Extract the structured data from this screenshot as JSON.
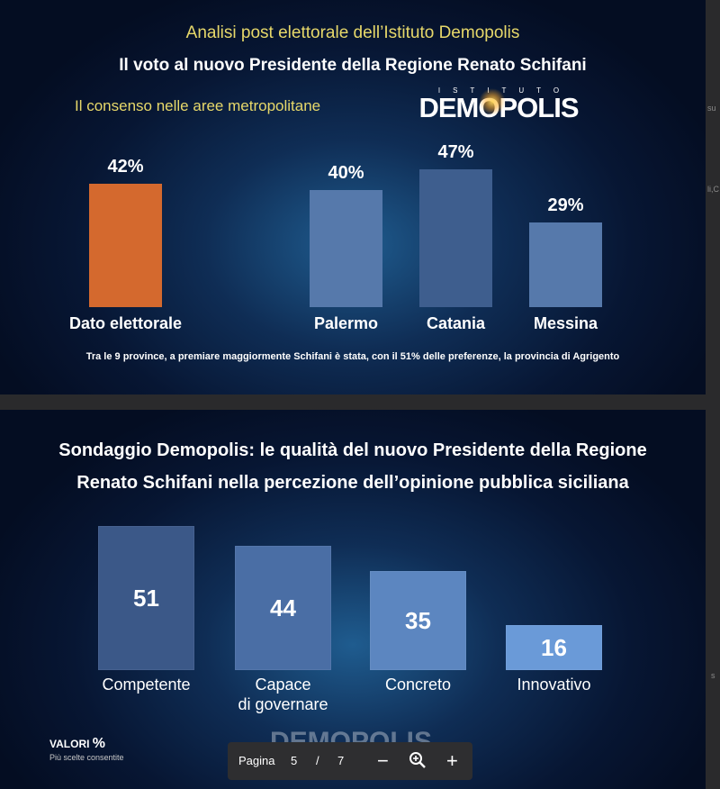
{
  "edge": {
    "right_fragment_1": "su",
    "right_fragment_2": "li,C",
    "right_fragment_3": "s"
  },
  "slide1": {
    "kicker": "Analisi post elettorale dell’Istituto Demopolis",
    "title": "Il voto al nuovo Presidente della Regione Renato Schifani",
    "subtitle": "Il consenso nelle aree metropolitane",
    "logo_small": "ISTITUTO",
    "logo_big": "DEMOPOLIS",
    "note": "Tra le 9 province, a premiare maggiormente Schifani è stata, con il 51% delle preferenze, la provincia di Agrigento"
  },
  "slide2": {
    "title_line1": "Sondaggio Demopolis: le qualità del nuovo Presidente della Regione",
    "title_line2": "Renato Schifani nella percezione dell’opinione pubblica siciliana",
    "valori_label": "VALORI",
    "valori_unit": "%",
    "valori_note": "Più scelte consentite",
    "watermark": "DEMOPOLIS"
  },
  "chart_data": [
    {
      "type": "bar",
      "categories": [
        "Dato elettorale",
        "Palermo",
        "Catania",
        "Messina"
      ],
      "values": [
        42,
        40,
        47,
        29
      ],
      "labels": [
        "42%",
        "40%",
        "47%",
        "29%"
      ],
      "colors": [
        "#d4692e",
        "#5679ab",
        "#3e5e8e",
        "#5679ab"
      ],
      "ylim": [
        0,
        47
      ]
    },
    {
      "type": "bar",
      "categories": [
        "Competente",
        "Capace\ndi governare",
        "Concreto",
        "Innovativo"
      ],
      "values": [
        51,
        44,
        35,
        16
      ],
      "labels": [
        "51",
        "44",
        "35",
        "16"
      ],
      "colors": [
        "#3b5888",
        "#4a6ea5",
        "#5c86c0",
        "#6a9ad8"
      ],
      "ylim": [
        0,
        51
      ]
    }
  ],
  "pager": {
    "label": "Pagina",
    "current": "5",
    "separator": "/",
    "total": "7",
    "zoom_out": "−",
    "zoom_in": "+"
  }
}
